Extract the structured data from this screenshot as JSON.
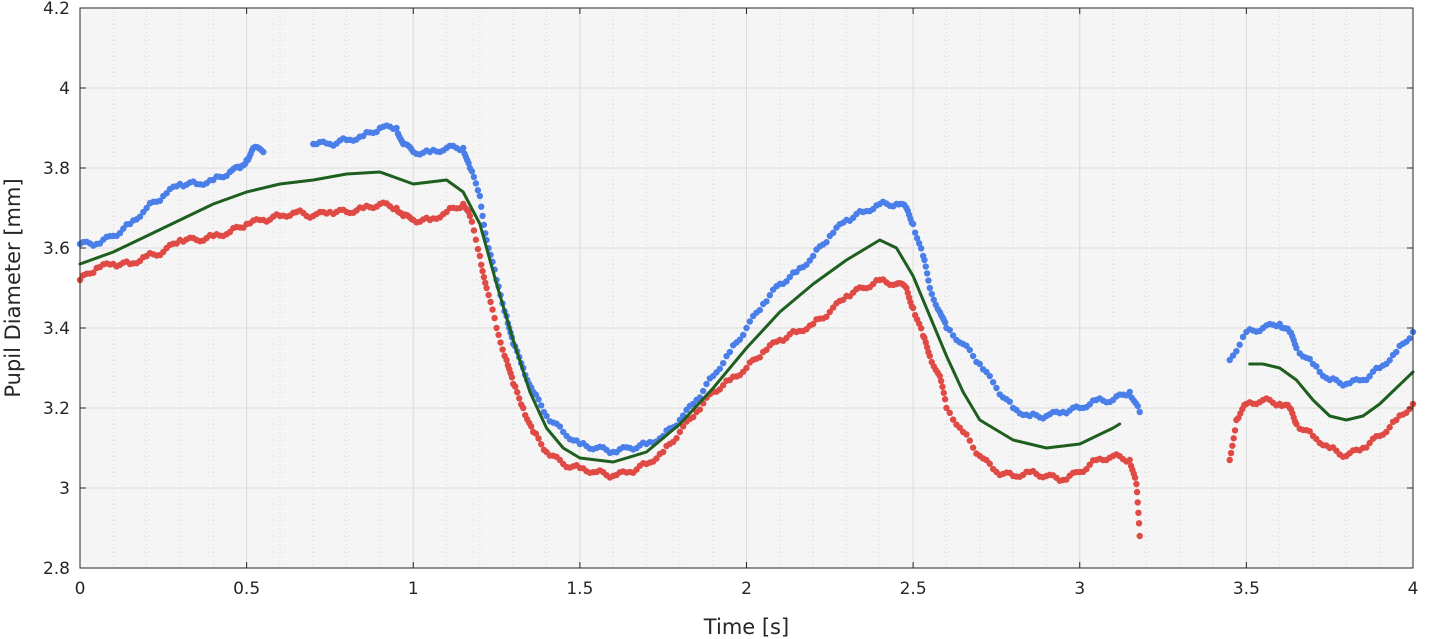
{
  "chart_data": {
    "type": "scatter",
    "xlabel": "Time [s]",
    "ylabel": "Pupil Diameter [mm]",
    "xlim": [
      0,
      4
    ],
    "ylim": [
      2.8,
      4.2
    ],
    "xticks": [
      0,
      0.5,
      1,
      1.5,
      2,
      2.5,
      3,
      3.5,
      4
    ],
    "xtick_labels": [
      "0",
      "0.5",
      "1",
      "1.5",
      "2",
      "2.5",
      "3",
      "3.5",
      "4"
    ],
    "yticks": [
      2.8,
      3,
      3.2,
      3.4,
      3.6,
      3.8,
      4,
      4.2
    ],
    "ytick_labels": [
      "2.8",
      "3",
      "3.2",
      "3.4",
      "3.6",
      "3.8",
      "4",
      "4.2"
    ],
    "grid": true,
    "minor_grid": true,
    "colors": {
      "blue": "#4a7ee8",
      "red": "#e04a45",
      "green": "#1e5e1e",
      "background": "#f5f5f5",
      "grid": "#dcdcdc"
    },
    "series": [
      {
        "style": "dots",
        "color": "blue",
        "points": [
          [
            0,
            3.61
          ],
          [
            0.05,
            3.61
          ],
          [
            0.1,
            3.63
          ],
          [
            0.15,
            3.66
          ],
          [
            0.2,
            3.7
          ],
          [
            0.25,
            3.73
          ],
          [
            0.3,
            3.76
          ],
          [
            0.35,
            3.76
          ],
          [
            0.4,
            3.77
          ],
          [
            0.45,
            3.79
          ],
          [
            0.48,
            3.8
          ],
          [
            0.5,
            3.82
          ],
          [
            0.52,
            3.85
          ],
          [
            0.55,
            3.84
          ],
          [
            0.7,
            3.86
          ],
          [
            0.75,
            3.86
          ],
          [
            0.8,
            3.87
          ],
          [
            0.85,
            3.88
          ],
          [
            0.9,
            3.9
          ],
          [
            0.95,
            3.9
          ],
          [
            0.97,
            3.86
          ],
          [
            1.0,
            3.84
          ],
          [
            1.05,
            3.84
          ],
          [
            1.1,
            3.85
          ],
          [
            1.15,
            3.85
          ],
          [
            1.17,
            3.8
          ],
          [
            1.2,
            3.73
          ],
          [
            1.22,
            3.62
          ],
          [
            1.25,
            3.52
          ],
          [
            1.28,
            3.43
          ],
          [
            1.3,
            3.36
          ],
          [
            1.33,
            3.3
          ],
          [
            1.36,
            3.24
          ],
          [
            1.4,
            3.18
          ],
          [
            1.45,
            3.14
          ],
          [
            1.5,
            3.11
          ],
          [
            1.55,
            3.1
          ],
          [
            1.6,
            3.09
          ],
          [
            1.65,
            3.1
          ],
          [
            1.7,
            3.11
          ],
          [
            1.75,
            3.13
          ],
          [
            1.8,
            3.17
          ],
          [
            1.85,
            3.22
          ],
          [
            1.9,
            3.28
          ],
          [
            1.95,
            3.34
          ],
          [
            2.0,
            3.4
          ],
          [
            2.05,
            3.46
          ],
          [
            2.1,
            3.51
          ],
          [
            2.15,
            3.54
          ],
          [
            2.2,
            3.58
          ],
          [
            2.25,
            3.63
          ],
          [
            2.3,
            3.67
          ],
          [
            2.35,
            3.69
          ],
          [
            2.4,
            3.71
          ],
          [
            2.45,
            3.71
          ],
          [
            2.48,
            3.7
          ],
          [
            2.5,
            3.66
          ],
          [
            2.53,
            3.58
          ],
          [
            2.55,
            3.5
          ],
          [
            2.58,
            3.44
          ],
          [
            2.6,
            3.4
          ],
          [
            2.65,
            3.36
          ],
          [
            2.7,
            3.31
          ],
          [
            2.75,
            3.25
          ],
          [
            2.8,
            3.2
          ],
          [
            2.85,
            3.18
          ],
          [
            2.9,
            3.18
          ],
          [
            2.95,
            3.19
          ],
          [
            3.0,
            3.2
          ],
          [
            3.05,
            3.22
          ],
          [
            3.1,
            3.22
          ],
          [
            3.15,
            3.24
          ],
          [
            3.18,
            3.19
          ],
          [
            3.45,
            3.32
          ],
          [
            3.5,
            3.39
          ],
          [
            3.55,
            3.4
          ],
          [
            3.6,
            3.41
          ],
          [
            3.63,
            3.39
          ],
          [
            3.65,
            3.35
          ],
          [
            3.7,
            3.31
          ],
          [
            3.75,
            3.27
          ],
          [
            3.8,
            3.26
          ],
          [
            3.85,
            3.27
          ],
          [
            3.9,
            3.3
          ],
          [
            3.95,
            3.34
          ],
          [
            4.0,
            3.39
          ]
        ]
      },
      {
        "style": "dots",
        "color": "red",
        "points": [
          [
            0,
            3.52
          ],
          [
            0.05,
            3.55
          ],
          [
            0.1,
            3.56
          ],
          [
            0.15,
            3.56
          ],
          [
            0.2,
            3.58
          ],
          [
            0.25,
            3.59
          ],
          [
            0.3,
            3.62
          ],
          [
            0.35,
            3.62
          ],
          [
            0.4,
            3.63
          ],
          [
            0.45,
            3.64
          ],
          [
            0.5,
            3.66
          ],
          [
            0.55,
            3.67
          ],
          [
            0.6,
            3.68
          ],
          [
            0.65,
            3.69
          ],
          [
            0.7,
            3.68
          ],
          [
            0.75,
            3.69
          ],
          [
            0.8,
            3.69
          ],
          [
            0.85,
            3.7
          ],
          [
            0.9,
            3.71
          ],
          [
            0.95,
            3.7
          ],
          [
            0.97,
            3.68
          ],
          [
            1.0,
            3.67
          ],
          [
            1.05,
            3.67
          ],
          [
            1.1,
            3.69
          ],
          [
            1.15,
            3.71
          ],
          [
            1.17,
            3.68
          ],
          [
            1.2,
            3.58
          ],
          [
            1.22,
            3.5
          ],
          [
            1.25,
            3.4
          ],
          [
            1.28,
            3.32
          ],
          [
            1.3,
            3.26
          ],
          [
            1.33,
            3.2
          ],
          [
            1.36,
            3.14
          ],
          [
            1.4,
            3.09
          ],
          [
            1.45,
            3.06
          ],
          [
            1.5,
            3.05
          ],
          [
            1.55,
            3.04
          ],
          [
            1.6,
            3.03
          ],
          [
            1.65,
            3.04
          ],
          [
            1.7,
            3.06
          ],
          [
            1.75,
            3.09
          ],
          [
            1.8,
            3.14
          ],
          [
            1.85,
            3.19
          ],
          [
            1.9,
            3.24
          ],
          [
            1.95,
            3.27
          ],
          [
            2.0,
            3.3
          ],
          [
            2.05,
            3.34
          ],
          [
            2.1,
            3.37
          ],
          [
            2.15,
            3.39
          ],
          [
            2.2,
            3.41
          ],
          [
            2.25,
            3.44
          ],
          [
            2.3,
            3.48
          ],
          [
            2.35,
            3.5
          ],
          [
            2.4,
            3.52
          ],
          [
            2.45,
            3.51
          ],
          [
            2.48,
            3.5
          ],
          [
            2.5,
            3.45
          ],
          [
            2.53,
            3.38
          ],
          [
            2.55,
            3.33
          ],
          [
            2.58,
            3.28
          ],
          [
            2.6,
            3.2
          ],
          [
            2.65,
            3.14
          ],
          [
            2.7,
            3.08
          ],
          [
            2.75,
            3.04
          ],
          [
            2.8,
            3.03
          ],
          [
            2.85,
            3.04
          ],
          [
            2.9,
            3.03
          ],
          [
            2.95,
            3.02
          ],
          [
            3.0,
            3.04
          ],
          [
            3.05,
            3.07
          ],
          [
            3.1,
            3.08
          ],
          [
            3.15,
            3.07
          ],
          [
            3.17,
            3.01
          ],
          [
            3.18,
            2.88
          ],
          [
            3.45,
            3.07
          ],
          [
            3.47,
            3.17
          ],
          [
            3.5,
            3.21
          ],
          [
            3.55,
            3.22
          ],
          [
            3.6,
            3.21
          ],
          [
            3.63,
            3.2
          ],
          [
            3.65,
            3.16
          ],
          [
            3.7,
            3.13
          ],
          [
            3.75,
            3.1
          ],
          [
            3.8,
            3.08
          ],
          [
            3.85,
            3.1
          ],
          [
            3.9,
            3.13
          ],
          [
            3.95,
            3.17
          ],
          [
            4.0,
            3.21
          ]
        ]
      },
      {
        "style": "line",
        "color": "green",
        "segments": [
          [
            [
              0,
              3.56
            ],
            [
              0.1,
              3.59
            ],
            [
              0.2,
              3.63
            ],
            [
              0.3,
              3.67
            ],
            [
              0.4,
              3.71
            ],
            [
              0.5,
              3.74
            ],
            [
              0.6,
              3.76
            ],
            [
              0.7,
              3.77
            ],
            [
              0.8,
              3.785
            ],
            [
              0.9,
              3.79
            ],
            [
              1.0,
              3.76
            ],
            [
              1.05,
              3.765
            ],
            [
              1.1,
              3.77
            ],
            [
              1.15,
              3.74
            ],
            [
              1.2,
              3.66
            ],
            [
              1.25,
              3.51
            ],
            [
              1.3,
              3.37
            ],
            [
              1.35,
              3.24
            ],
            [
              1.4,
              3.15
            ],
            [
              1.45,
              3.1
            ],
            [
              1.5,
              3.075
            ],
            [
              1.6,
              3.065
            ],
            [
              1.7,
              3.09
            ],
            [
              1.8,
              3.16
            ],
            [
              1.9,
              3.25
            ],
            [
              2.0,
              3.35
            ],
            [
              2.1,
              3.44
            ],
            [
              2.2,
              3.51
            ],
            [
              2.3,
              3.57
            ],
            [
              2.4,
              3.62
            ],
            [
              2.45,
              3.6
            ],
            [
              2.5,
              3.53
            ],
            [
              2.55,
              3.43
            ],
            [
              2.6,
              3.33
            ],
            [
              2.65,
              3.24
            ],
            [
              2.7,
              3.17
            ],
            [
              2.8,
              3.12
            ],
            [
              2.9,
              3.1
            ],
            [
              3.0,
              3.11
            ],
            [
              3.1,
              3.15
            ],
            [
              3.12,
              3.16
            ]
          ],
          [
            [
              3.51,
              3.31
            ],
            [
              3.55,
              3.31
            ],
            [
              3.6,
              3.3
            ],
            [
              3.65,
              3.27
            ],
            [
              3.7,
              3.22
            ],
            [
              3.75,
              3.18
            ],
            [
              3.8,
              3.17
            ],
            [
              3.85,
              3.18
            ],
            [
              3.9,
              3.21
            ],
            [
              3.95,
              3.25
            ],
            [
              4.0,
              3.29
            ]
          ]
        ]
      }
    ]
  }
}
